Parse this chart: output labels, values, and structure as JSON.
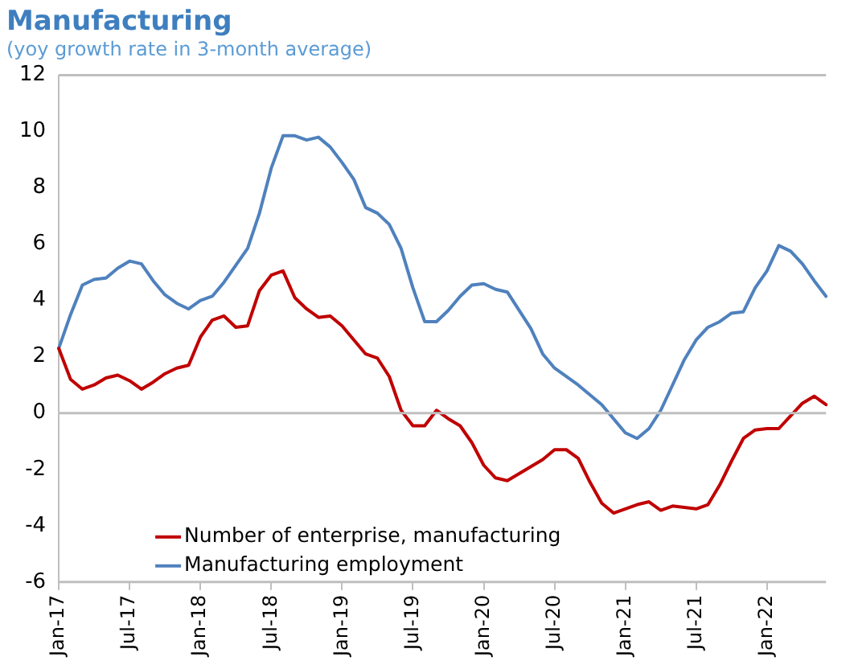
{
  "chart_data": {
    "type": "line",
    "title": "Manufacturing",
    "subtitle": "(yoy growth rate in 3-month average)",
    "categories": [
      "Jan-17",
      null,
      null,
      null,
      null,
      null,
      "Jul-17",
      null,
      null,
      null,
      null,
      null,
      "Jan-18",
      null,
      null,
      null,
      null,
      null,
      "Jul-18",
      null,
      null,
      null,
      null,
      null,
      "Jan-19",
      null,
      null,
      null,
      null,
      null,
      "Jul-19",
      null,
      null,
      null,
      null,
      null,
      "Jan-20",
      null,
      null,
      null,
      null,
      null,
      "Jul-20",
      null,
      null,
      null,
      null,
      null,
      "Jan-21",
      null,
      null,
      null,
      null,
      null,
      "Jul-21",
      null,
      null,
      null,
      null,
      null,
      "Jan-22",
      null,
      null,
      null,
      null,
      null
    ],
    "series": [
      {
        "name": "Number of enterprise, manufacturing",
        "color": "#c00000",
        "values": [
          2.3,
          1.2,
          0.85,
          1.0,
          1.25,
          1.35,
          1.15,
          0.85,
          1.1,
          1.4,
          1.6,
          1.7,
          2.7,
          3.3,
          3.45,
          3.05,
          3.1,
          4.35,
          4.9,
          5.05,
          4.1,
          3.7,
          3.4,
          3.45,
          3.1,
          2.6,
          2.1,
          1.95,
          1.3,
          0.1,
          -0.45,
          -0.45,
          0.1,
          -0.2,
          -0.45,
          -1.05,
          -1.85,
          -2.3,
          -2.4,
          -2.15,
          -1.9,
          -1.65,
          -1.3,
          -1.3,
          -1.6,
          -2.45,
          -3.2,
          -3.55,
          -3.4,
          -3.25,
          -3.15,
          -3.45,
          -3.3,
          -3.35,
          -3.4,
          -3.25,
          -2.55,
          -1.7,
          -0.9,
          -0.6,
          -0.55,
          -0.55,
          -0.1,
          0.35,
          0.6,
          0.3
        ]
      },
      {
        "name": "Manufacturing employment",
        "color": "#4f81bd",
        "values": [
          2.3,
          3.5,
          4.55,
          4.75,
          4.8,
          5.15,
          5.4,
          5.3,
          4.7,
          4.2,
          3.9,
          3.7,
          4.0,
          4.15,
          4.65,
          5.25,
          5.85,
          7.1,
          8.7,
          9.85,
          9.85,
          9.7,
          9.8,
          9.45,
          8.9,
          8.3,
          7.3,
          7.1,
          6.7,
          5.85,
          4.45,
          3.25,
          3.25,
          3.65,
          4.15,
          4.55,
          4.6,
          4.4,
          4.3,
          3.65,
          3.0,
          2.1,
          1.6,
          1.3,
          1.0,
          0.65,
          0.3,
          -0.2,
          -0.7,
          -0.9,
          -0.55,
          0.1,
          1.0,
          1.9,
          2.6,
          3.05,
          3.25,
          3.55,
          3.6,
          4.45,
          5.05,
          5.95,
          5.75,
          5.3,
          4.7,
          4.15
        ]
      }
    ],
    "ylim": [
      -6,
      12
    ],
    "yticks": [
      -6,
      -4,
      -2,
      0,
      2,
      4,
      6,
      8,
      10,
      12
    ],
    "grid": false,
    "ref_lines": [
      {
        "axis": "y",
        "value": 0,
        "color": "#bfbfbf"
      }
    ],
    "legend": "bottom left",
    "marker": "none",
    "line_style": "solid"
  }
}
